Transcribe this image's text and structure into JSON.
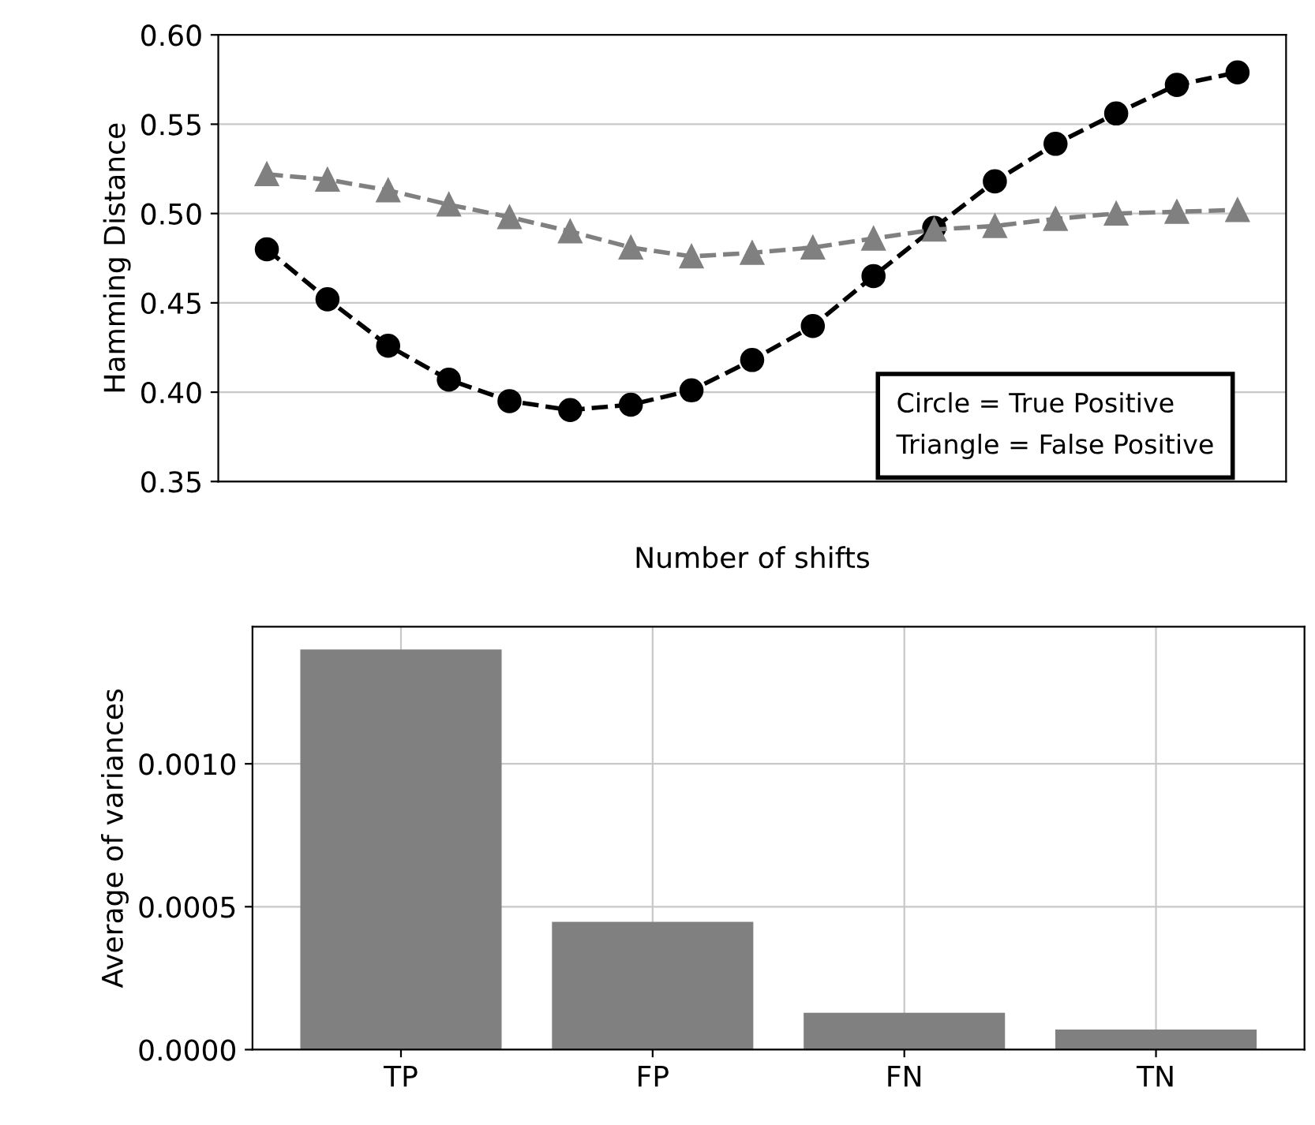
{
  "chart_data": [
    {
      "type": "line",
      "xlabel": "Number of shifts",
      "ylabel": "Hamming Distance",
      "categories": [
        null,
        null,
        null,
        null,
        null,
        null,
        null,
        null,
        null,
        null,
        null,
        null,
        null,
        null,
        null,
        null,
        null
      ],
      "series": [
        {
          "color": "#000000",
          "marker": "circle",
          "values": [
            0.48,
            0.452,
            0.426,
            0.407,
            0.395,
            0.39,
            0.393,
            0.401,
            0.418,
            0.437,
            0.465,
            0.492,
            0.518,
            0.539,
            0.556,
            0.572,
            0.579
          ]
        },
        {
          "color": "#808080",
          "marker": "triangle",
          "values": [
            0.522,
            0.519,
            0.513,
            0.505,
            0.498,
            0.49,
            0.481,
            0.476,
            0.478,
            0.481,
            0.486,
            0.491,
            0.493,
            0.497,
            0.5,
            0.501,
            0.502
          ]
        }
      ],
      "line_style": "dashed",
      "ylim": [
        0.35,
        0.6
      ],
      "yticks": [
        {
          "value": 0.35,
          "label": "0.35"
        },
        {
          "value": 0.4,
          "label": "0.40"
        },
        {
          "value": 0.45,
          "label": "0.45"
        },
        {
          "value": 0.5,
          "label": "0.50"
        },
        {
          "value": 0.55,
          "label": "0.55"
        },
        {
          "value": 0.6,
          "label": "0.60"
        }
      ],
      "grid": "y",
      "annotations": [
        "Circle = True Positive",
        "Triangle = False Positive"
      ]
    },
    {
      "type": "bar",
      "ylabel": "Average of variances",
      "categories": [
        "TP",
        "FP",
        "FN",
        "TN"
      ],
      "values": [
        0.0014,
        0.000447,
        0.000129,
        7e-05
      ],
      "color": "#808080",
      "ylim": [
        0,
        0.00148
      ],
      "yticks": [
        {
          "value": 0,
          "label": "0.0000"
        },
        {
          "value": 0.0005,
          "label": "0.0005"
        },
        {
          "value": 0.001,
          "label": "0.0010"
        }
      ],
      "grid": true
    }
  ]
}
